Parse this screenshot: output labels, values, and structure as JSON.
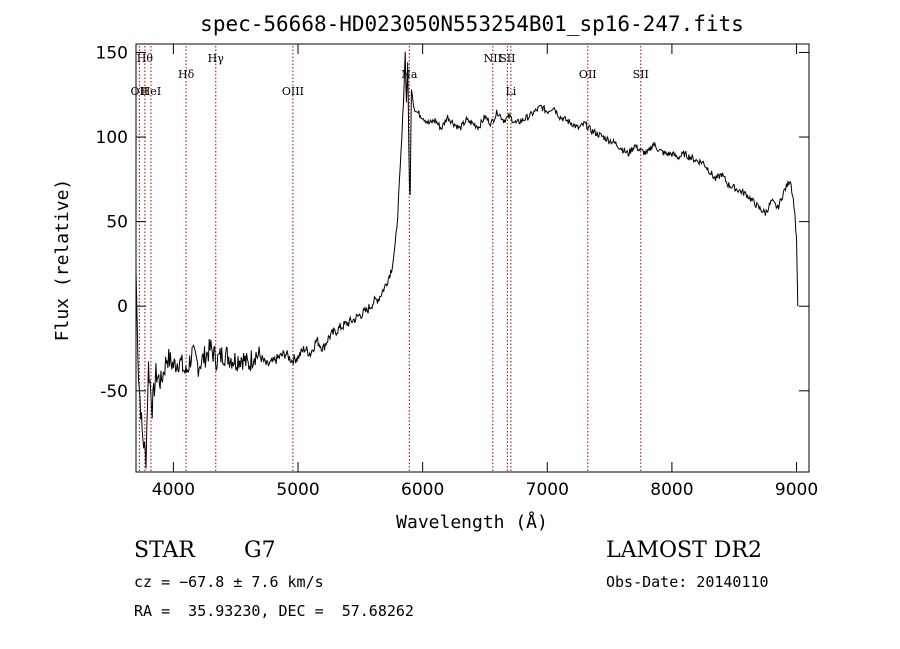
{
  "chart_data": {
    "type": "line",
    "title": "spec-56668-HD023050N553254B01_sp16-247.fits",
    "xlabel": "Wavelength (Å)",
    "ylabel": "Flux (relative)",
    "xlim": [
      3700,
      9100
    ],
    "ylim": [
      -98,
      155
    ],
    "xticks": [
      4000,
      5000,
      6000,
      7000,
      8000,
      9000
    ],
    "yticks": [
      -50,
      0,
      50,
      100,
      150
    ],
    "series": [
      {
        "x": [
          3700,
          3720,
          3750,
          3780,
          3800,
          3830,
          3860,
          3900,
          3950,
          4000,
          4050,
          4100,
          4150,
          4200,
          4250,
          4300,
          4350,
          4400,
          4450,
          4500,
          4550,
          4600,
          4650,
          4700,
          4750,
          4800,
          4850,
          4900,
          4950,
          5000,
          5050,
          5100,
          5150,
          5200,
          5250,
          5300,
          5350,
          5400,
          5450,
          5500,
          5550,
          5600,
          5650,
          5700,
          5750,
          5780,
          5800,
          5820,
          5840,
          5860,
          5870,
          5880,
          5890,
          5895,
          5900,
          5910,
          5930,
          5950,
          6000,
          6050,
          6100,
          6150,
          6200,
          6250,
          6300,
          6350,
          6400,
          6450,
          6500,
          6550,
          6600,
          6650,
          6700,
          6750,
          6800,
          6850,
          6900,
          6950,
          7000,
          7050,
          7100,
          7150,
          7200,
          7250,
          7300,
          7350,
          7400,
          7450,
          7500,
          7550,
          7600,
          7650,
          7700,
          7750,
          7800,
          7850,
          7900,
          7950,
          8000,
          8050,
          8100,
          8150,
          8200,
          8250,
          8300,
          8350,
          8400,
          8450,
          8500,
          8550,
          8600,
          8650,
          8700,
          8750,
          8800,
          8850,
          8900,
          8950,
          8980,
          9000,
          9010
        ],
        "y": [
          20,
          -40,
          -75,
          -90,
          -35,
          -60,
          -40,
          -45,
          -30,
          -35,
          -32,
          -40,
          -28,
          -35,
          -30,
          -25,
          -32,
          -28,
          -30,
          -32,
          -30,
          -35,
          -28,
          -30,
          -35,
          -33,
          -30,
          -28,
          -32,
          -30,
          -25,
          -28,
          -20,
          -25,
          -18,
          -15,
          -12,
          -10,
          -8,
          -5,
          -3,
          2,
          5,
          12,
          22,
          35,
          55,
          80,
          110,
          150,
          120,
          145,
          90,
          70,
          65,
          130,
          118,
          115,
          112,
          108,
          110,
          105,
          112,
          108,
          105,
          110,
          108,
          106,
          112,
          108,
          115,
          110,
          112,
          108,
          110,
          112,
          115,
          118,
          115,
          118,
          112,
          110,
          108,
          105,
          108,
          104,
          102,
          100,
          98,
          96,
          93,
          90,
          95,
          92,
          90,
          96,
          92,
          90,
          90,
          88,
          90,
          88,
          86,
          85,
          80,
          75,
          78,
          72,
          70,
          68,
          66,
          62,
          58,
          55,
          62,
          58,
          68,
          75,
          60,
          40,
          0
        ]
      }
    ],
    "lines": [
      {
        "x": 3771,
        "label": "Hθ",
        "row": 0
      },
      {
        "x": 3727,
        "label": "OII",
        "row": 2
      },
      {
        "x": 3820,
        "label": "HeI",
        "row": 2
      },
      {
        "x": 4102,
        "label": "Hδ",
        "row": 1
      },
      {
        "x": 4340,
        "label": "Hγ",
        "row": 0
      },
      {
        "x": 4959,
        "label": "OIII",
        "row": 2
      },
      {
        "x": 5893,
        "label": "Na",
        "row": 1
      },
      {
        "x": 6563,
        "label": "NII",
        "row": 0
      },
      {
        "x": 6680,
        "label": "SII",
        "row": 0
      },
      {
        "x": 6708,
        "label": "Li",
        "row": 2
      },
      {
        "x": 7325,
        "label": "OII",
        "row": 1
      },
      {
        "x": 7750,
        "label": "SII",
        "row": 1
      }
    ],
    "grid": false
  },
  "info": {
    "class": "STAR",
    "subclass": "G7",
    "cz": "cz = −67.8 ± 7.6 km/s",
    "radec": "RA =  35.93230, DEC =  57.68262",
    "survey": "LAMOST DR2",
    "obsdate": "Obs-Date: 20140110"
  }
}
